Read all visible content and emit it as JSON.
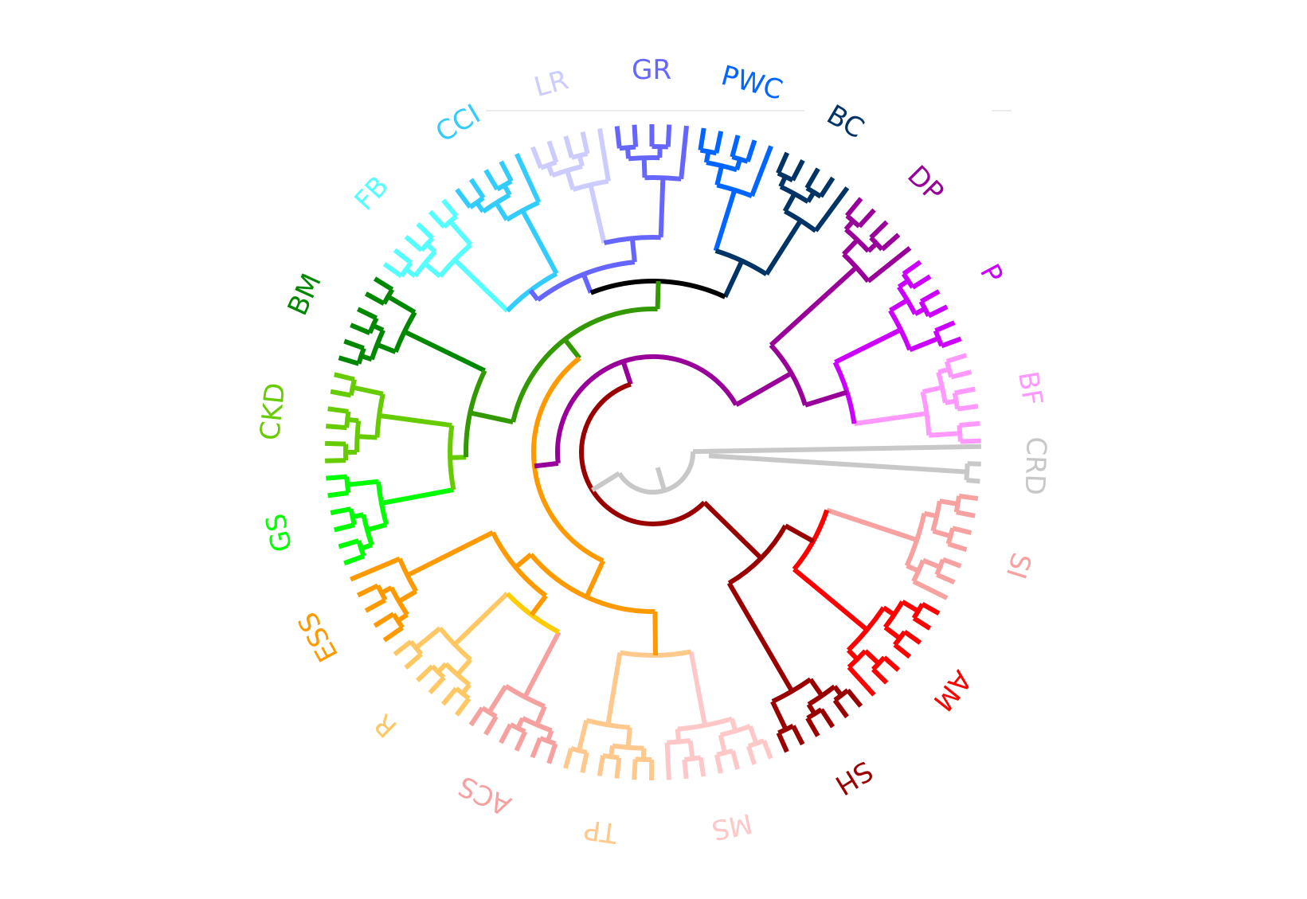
{
  "clusters": [
    {
      "id": "CRD",
      "label": "CRD",
      "color": "#c8c8c8",
      "leaves": 3
    },
    {
      "id": "SI",
      "label": "SI",
      "color": "#f7a1a1",
      "leaves": 7
    },
    {
      "id": "AM",
      "label": "AM",
      "color": "#ff0000",
      "leaves": 7
    },
    {
      "id": "SH",
      "label": "SH",
      "color": "#990000",
      "leaves": 6
    },
    {
      "id": "MS",
      "label": "MS",
      "color": "#ffc8c8",
      "leaves": 7
    },
    {
      "id": "TP",
      "label": "TP",
      "color": "#ffc88c",
      "leaves": 6
    },
    {
      "id": "ACS",
      "label": "ACS",
      "color": "#f7a0a0",
      "leaves": 6
    },
    {
      "id": "R",
      "label": "R",
      "color": "#ffc864",
      "leaves": 6
    },
    {
      "id": "ESS",
      "label": "ESS",
      "color": "#ff9900",
      "leaves": 5
    },
    {
      "id": "GS",
      "label": "GS",
      "color": "#00ff00",
      "leaves": 6
    },
    {
      "id": "CKD",
      "label": "CKD",
      "color": "#66cc00",
      "leaves": 6
    },
    {
      "id": "BM",
      "label": "BM",
      "color": "#008800",
      "leaves": 6
    },
    {
      "id": "FB",
      "label": "FB",
      "color": "#55ffff",
      "leaves": 6
    },
    {
      "id": "CCI",
      "label": "CCI",
      "color": "#33ccff",
      "leaves": 5
    },
    {
      "id": "LR",
      "label": "LR",
      "color": "#ccccff",
      "leaves": 5
    },
    {
      "id": "GR",
      "label": "GR",
      "color": "#6666ff",
      "leaves": 5
    },
    {
      "id": "PWC",
      "label": "PWC",
      "color": "#0066ff",
      "leaves": 5
    },
    {
      "id": "BC",
      "label": "BC",
      "color": "#003366",
      "leaves": 5
    },
    {
      "id": "DP",
      "label": "DP",
      "color": "#990099",
      "leaves": 5
    },
    {
      "id": "P",
      "label": "P",
      "color": "#cc00ff",
      "leaves": 6
    },
    {
      "id": "BF",
      "label": "BF",
      "color": "#ff99ff",
      "leaves": 6
    }
  ],
  "backbone_colors": {
    "root": "#c8c8c8",
    "red_branch": "#990000",
    "purple_branch": "#990099",
    "orange_branch": "#ff9900",
    "green_branch": "#339900",
    "black_link": "#000000",
    "blue_group": "#6666ff",
    "navy_group": "#003366"
  }
}
